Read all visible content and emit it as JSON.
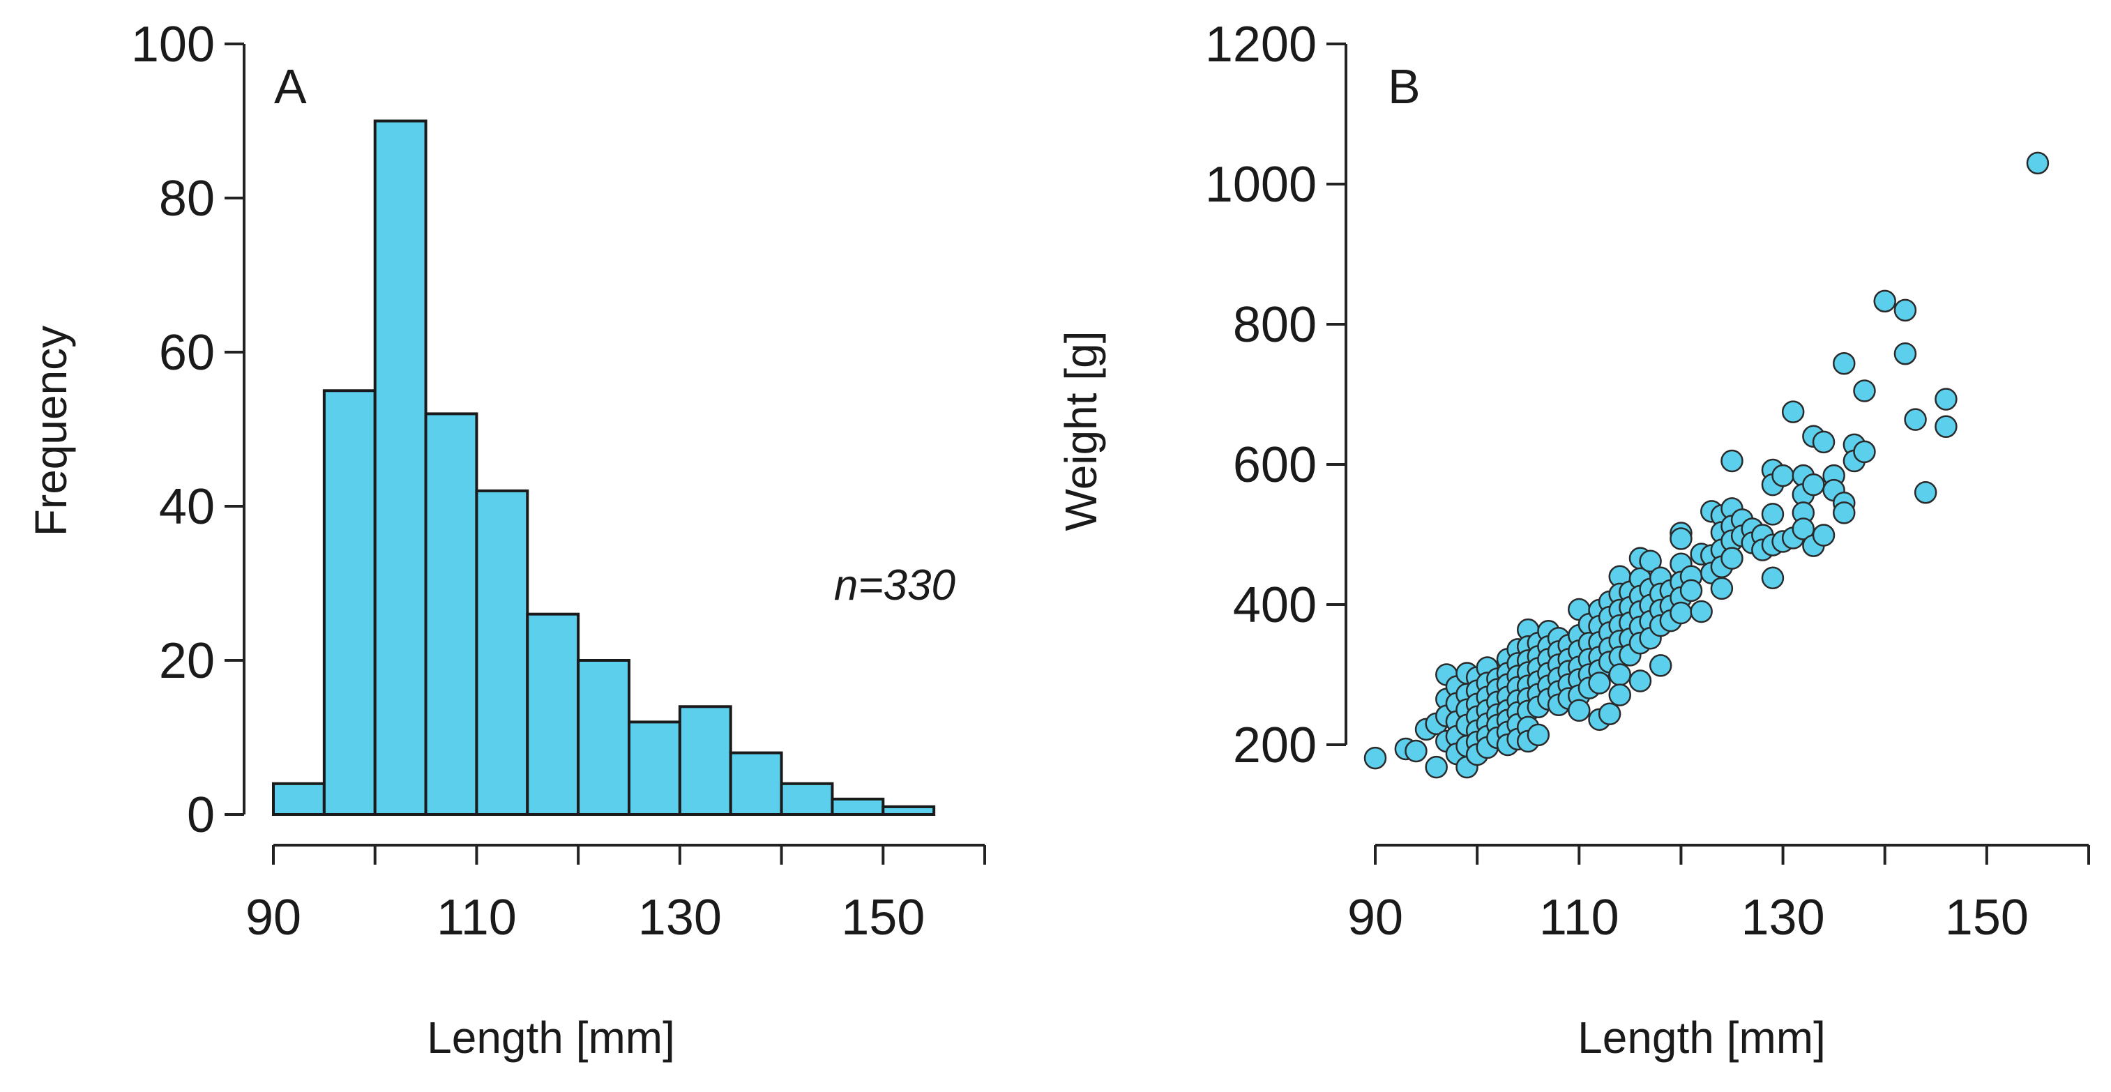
{
  "chart_data": [
    {
      "type": "bar",
      "panel_label": "A",
      "title": "",
      "xlabel": "Length [mm]",
      "ylabel": "Frequency",
      "annotation": "n=330",
      "bins": [
        {
          "from": 90,
          "to": 95,
          "count": 4
        },
        {
          "from": 95,
          "to": 100,
          "count": 55
        },
        {
          "from": 100,
          "to": 105,
          "count": 90
        },
        {
          "from": 105,
          "to": 110,
          "count": 52
        },
        {
          "from": 110,
          "to": 115,
          "count": 42
        },
        {
          "from": 115,
          "to": 120,
          "count": 26
        },
        {
          "from": 120,
          "to": 125,
          "count": 20
        },
        {
          "from": 125,
          "to": 130,
          "count": 12
        },
        {
          "from": 130,
          "to": 135,
          "count": 14
        },
        {
          "from": 135,
          "to": 140,
          "count": 8
        },
        {
          "from": 140,
          "to": 145,
          "count": 4
        },
        {
          "from": 145,
          "to": 150,
          "count": 2
        },
        {
          "from": 150,
          "to": 155,
          "count": 1
        }
      ],
      "xlim": [
        90,
        160
      ],
      "ylim": [
        0,
        100
      ],
      "xticks": [
        90,
        110,
        130,
        150
      ],
      "yticks": [
        0,
        20,
        40,
        60,
        80,
        100
      ],
      "grid": false,
      "color": "#5bcfec"
    },
    {
      "type": "scatter",
      "panel_label": "B",
      "title": "",
      "xlabel": "Length [mm]",
      "ylabel": "Weight [g]",
      "xlim": [
        90,
        160
      ],
      "ylim": [
        200,
        1200
      ],
      "xticks": [
        90,
        110,
        130,
        150
      ],
      "yticks": [
        200,
        400,
        600,
        800,
        1000,
        1200
      ],
      "grid": false,
      "color": "#5bcfec",
      "points": [
        [
          90,
          181
        ],
        [
          93,
          194
        ],
        [
          94,
          191
        ],
        [
          95,
          222
        ],
        [
          96,
          230
        ],
        [
          96,
          168
        ],
        [
          97,
          300
        ],
        [
          97,
          265
        ],
        [
          97,
          241
        ],
        [
          97,
          205
        ],
        [
          98,
          283
        ],
        [
          98,
          259
        ],
        [
          98,
          233
        ],
        [
          98,
          212
        ],
        [
          98,
          187
        ],
        [
          99,
          302
        ],
        [
          99,
          272
        ],
        [
          99,
          250
        ],
        [
          99,
          228
        ],
        [
          99,
          198
        ],
        [
          99,
          168
        ],
        [
          100,
          296
        ],
        [
          100,
          277
        ],
        [
          100,
          258
        ],
        [
          100,
          240
        ],
        [
          100,
          220
        ],
        [
          100,
          204
        ],
        [
          100,
          186
        ],
        [
          101,
          310
        ],
        [
          101,
          288
        ],
        [
          101,
          268
        ],
        [
          101,
          249
        ],
        [
          101,
          230
        ],
        [
          101,
          212
        ],
        [
          101,
          196
        ],
        [
          102,
          294
        ],
        [
          102,
          279
        ],
        [
          102,
          261
        ],
        [
          102,
          243
        ],
        [
          102,
          228
        ],
        [
          102,
          210
        ],
        [
          103,
          322
        ],
        [
          103,
          302
        ],
        [
          103,
          286
        ],
        [
          103,
          268
        ],
        [
          103,
          249
        ],
        [
          103,
          235
        ],
        [
          103,
          218
        ],
        [
          103,
          200
        ],
        [
          104,
          336
        ],
        [
          104,
          316
        ],
        [
          104,
          298
        ],
        [
          104,
          282
        ],
        [
          104,
          263
        ],
        [
          104,
          246
        ],
        [
          104,
          229
        ],
        [
          104,
          208
        ],
        [
          105,
          364
        ],
        [
          105,
          340
        ],
        [
          105,
          320
        ],
        [
          105,
          303
        ],
        [
          105,
          284
        ],
        [
          105,
          266
        ],
        [
          105,
          248
        ],
        [
          105,
          225
        ],
        [
          105,
          205
        ],
        [
          106,
          345
        ],
        [
          106,
          326
        ],
        [
          106,
          309
        ],
        [
          106,
          290
        ],
        [
          106,
          272
        ],
        [
          106,
          254
        ],
        [
          106,
          214
        ],
        [
          107,
          362
        ],
        [
          107,
          340
        ],
        [
          107,
          322
        ],
        [
          107,
          302
        ],
        [
          107,
          284
        ],
        [
          107,
          265
        ],
        [
          108,
          352
        ],
        [
          108,
          333
        ],
        [
          108,
          314
        ],
        [
          108,
          295
        ],
        [
          108,
          276
        ],
        [
          108,
          257
        ],
        [
          109,
          342
        ],
        [
          109,
          322
        ],
        [
          109,
          305
        ],
        [
          109,
          286
        ],
        [
          109,
          266
        ],
        [
          110,
          393
        ],
        [
          110,
          356
        ],
        [
          110,
          334
        ],
        [
          110,
          311
        ],
        [
          110,
          293
        ],
        [
          110,
          270
        ],
        [
          110,
          249
        ],
        [
          111,
          372
        ],
        [
          111,
          345
        ],
        [
          111,
          322
        ],
        [
          111,
          300
        ],
        [
          111,
          281
        ],
        [
          112,
          392
        ],
        [
          112,
          369
        ],
        [
          112,
          346
        ],
        [
          112,
          325
        ],
        [
          112,
          306
        ],
        [
          112,
          288
        ],
        [
          112,
          236
        ],
        [
          113,
          404
        ],
        [
          113,
          382
        ],
        [
          113,
          360
        ],
        [
          113,
          338
        ],
        [
          113,
          318
        ],
        [
          113,
          244
        ],
        [
          114,
          440
        ],
        [
          114,
          415
        ],
        [
          114,
          392
        ],
        [
          114,
          370
        ],
        [
          114,
          348
        ],
        [
          114,
          325
        ],
        [
          114,
          300
        ],
        [
          114,
          271
        ],
        [
          115,
          418
        ],
        [
          115,
          396
        ],
        [
          115,
          374
        ],
        [
          115,
          351
        ],
        [
          115,
          328
        ],
        [
          116,
          466
        ],
        [
          116,
          437
        ],
        [
          116,
          412
        ],
        [
          116,
          390
        ],
        [
          116,
          368
        ],
        [
          116,
          345
        ],
        [
          116,
          291
        ],
        [
          117,
          462
        ],
        [
          117,
          422
        ],
        [
          117,
          399
        ],
        [
          117,
          376
        ],
        [
          117,
          352
        ],
        [
          118,
          438
        ],
        [
          118,
          415
        ],
        [
          118,
          392
        ],
        [
          118,
          370
        ],
        [
          118,
          313
        ],
        [
          119,
          420
        ],
        [
          119,
          398
        ],
        [
          119,
          377
        ],
        [
          120,
          502
        ],
        [
          120,
          494
        ],
        [
          120,
          458
        ],
        [
          120,
          432
        ],
        [
          120,
          410
        ],
        [
          120,
          388
        ],
        [
          121,
          440
        ],
        [
          121,
          420
        ],
        [
          122,
          472
        ],
        [
          122,
          390
        ],
        [
          123,
          533
        ],
        [
          123,
          470
        ],
        [
          123,
          445
        ],
        [
          124,
          527
        ],
        [
          124,
          503
        ],
        [
          124,
          478
        ],
        [
          124,
          454
        ],
        [
          124,
          423
        ],
        [
          125,
          605
        ],
        [
          125,
          537
        ],
        [
          125,
          512
        ],
        [
          125,
          491
        ],
        [
          125,
          466
        ],
        [
          126,
          521
        ],
        [
          126,
          498
        ],
        [
          127,
          508
        ],
        [
          127,
          488
        ],
        [
          128,
          499
        ],
        [
          128,
          478
        ],
        [
          129,
          592
        ],
        [
          129,
          571
        ],
        [
          129,
          529
        ],
        [
          129,
          485
        ],
        [
          129,
          438
        ],
        [
          130,
          584
        ],
        [
          130,
          490
        ],
        [
          131,
          675
        ],
        [
          131,
          495
        ],
        [
          132,
          584
        ],
        [
          132,
          557
        ],
        [
          132,
          531
        ],
        [
          132,
          508
        ],
        [
          133,
          640
        ],
        [
          133,
          571
        ],
        [
          133,
          484
        ],
        [
          134,
          632
        ],
        [
          134,
          499
        ],
        [
          135,
          584
        ],
        [
          135,
          563
        ],
        [
          136,
          744
        ],
        [
          136,
          545
        ],
        [
          136,
          531
        ],
        [
          137,
          628
        ],
        [
          137,
          605
        ],
        [
          138,
          705
        ],
        [
          138,
          618
        ],
        [
          140,
          833
        ],
        [
          142,
          820
        ],
        [
          142,
          758
        ],
        [
          143,
          664
        ],
        [
          144,
          560
        ],
        [
          146,
          693
        ],
        [
          146,
          654
        ],
        [
          155,
          1030
        ]
      ]
    }
  ]
}
